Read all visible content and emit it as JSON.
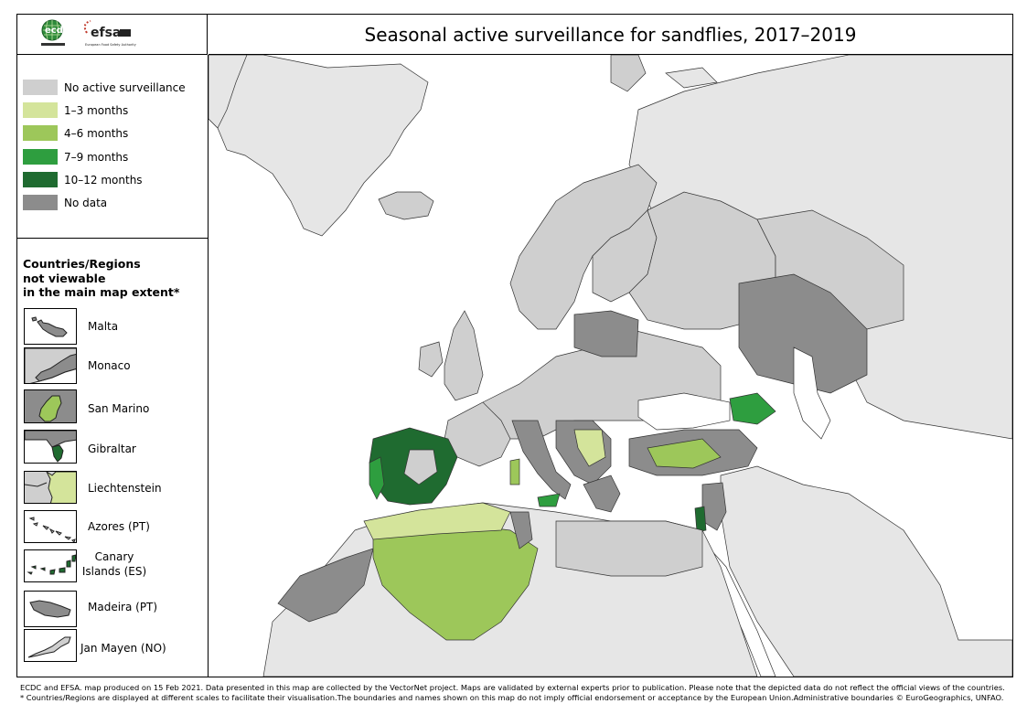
{
  "header": {
    "title": "Seasonal active surveillance for sandflies, 2017–2019",
    "logo_left": "ecdc",
    "logo_right": "efsa",
    "logo_right_subtitle": "European Food Safety Authority"
  },
  "legend": {
    "items": [
      {
        "label": "No active surveillance",
        "color": "#cfcfcf"
      },
      {
        "label": "1–3 months",
        "color": "#d4e49b"
      },
      {
        "label": "4–6 months",
        "color": "#9dc75a"
      },
      {
        "label": "7–9 months",
        "color": "#2e9e3f"
      },
      {
        "label": "10–12 months",
        "color": "#1f6b30"
      },
      {
        "label": "No data",
        "color": "#8c8c8c"
      }
    ]
  },
  "insets": {
    "title_lines": [
      "Countries/Regions",
      "not viewable",
      "in the main map extent*"
    ],
    "items": [
      {
        "label": "Malta"
      },
      {
        "label": "Monaco"
      },
      {
        "label": "San Marino"
      },
      {
        "label": "Gibraltar"
      },
      {
        "label": "Liechtenstein"
      },
      {
        "label": "Azores (PT)"
      },
      {
        "label": "Canary Islands (ES)"
      },
      {
        "label": "Madeira (PT)"
      },
      {
        "label": "Jan Mayen (NO)"
      }
    ]
  },
  "footer": {
    "line1": "ECDC and EFSA. map produced on 15 Feb 2021. Data presented in this map are collected by the VectorNet project. Maps are validated by external experts prior to publication. Please note that the depicted data do not reflect the official views of the countries.",
    "line2": "* Countries/Regions are displayed at different scales to facilitate their visualisation.The boundaries and names shown on this map do not imply official endorsement or acceptance by the European Union.Administrative boundaries © EuroGeographics, UNFAO."
  },
  "colors": {
    "non_eu_land": "#e6e6e6",
    "sea": "#ffffff",
    "border": "#333333"
  }
}
